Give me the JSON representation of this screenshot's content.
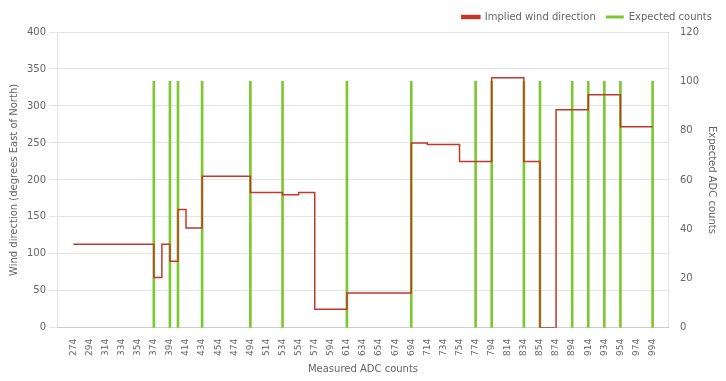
{
  "chart_data": {
    "type": "line",
    "xlabel": "Measured ADC counts",
    "ylabel": "Wind direction (degrees East of North)",
    "y2label": "Expected ADC counts",
    "xlim": [
      264,
      1004
    ],
    "xticks": [
      274,
      294,
      314,
      334,
      354,
      374,
      394,
      414,
      434,
      454,
      474,
      494,
      514,
      534,
      554,
      574,
      594,
      614,
      634,
      654,
      674,
      694,
      714,
      734,
      754,
      774,
      794,
      814,
      834,
      854,
      874,
      894,
      914,
      934,
      954,
      974,
      994
    ],
    "ylim": [
      0,
      400
    ],
    "yticks": [
      0,
      50,
      100,
      150,
      200,
      250,
      300,
      350,
      400
    ],
    "y2lim": [
      0,
      120
    ],
    "y2ticks": [
      0,
      20,
      40,
      60,
      80,
      100,
      120
    ],
    "grid": "y",
    "legend": "upper right",
    "series": [
      {
        "name": "Implied wind direction",
        "type": "line",
        "color": "#c0392b",
        "axis": "y",
        "x": [
          274,
          374,
          374,
          384,
          384,
          394,
          394,
          404,
          404,
          414,
          414,
          424,
          424,
          434,
          434,
          494,
          494,
          514,
          514,
          534,
          534,
          554,
          554,
          574,
          574,
          594,
          594,
          614,
          614,
          624,
          624,
          634,
          634,
          694,
          694,
          714,
          714,
          754,
          754,
          774,
          774,
          794,
          794,
          814,
          814,
          834,
          834,
          854,
          854,
          874,
          874,
          894,
          894,
          914,
          914,
          934,
          934,
          954,
          954,
          974,
          974,
          994
        ],
        "values": [
          113,
          113,
          68,
          68,
          113,
          113,
          90,
          90,
          160,
          160,
          135,
          135,
          135,
          135,
          205,
          205,
          183,
          183,
          183,
          183,
          180,
          180,
          183,
          183,
          25,
          25,
          25,
          25,
          47,
          47,
          47,
          47,
          47,
          47,
          250,
          250,
          248,
          248,
          225,
          225,
          225,
          225,
          338,
          338,
          338,
          338,
          225,
          225,
          0,
          0,
          295,
          295,
          295,
          295,
          315,
          315,
          315,
          315,
          272,
          272,
          272,
          272
        ]
      },
      {
        "name": "Expected counts",
        "type": "bar",
        "color": "#7dc832",
        "axis": "y2",
        "x": [
          374,
          394,
          404,
          434,
          494,
          534,
          614,
          694,
          774,
          794,
          834,
          854,
          894,
          914,
          934,
          954,
          994
        ],
        "values": [
          100,
          100,
          100,
          100,
          100,
          100,
          100,
          100,
          100,
          100,
          100,
          100,
          100,
          100,
          100,
          100,
          100
        ]
      }
    ]
  }
}
